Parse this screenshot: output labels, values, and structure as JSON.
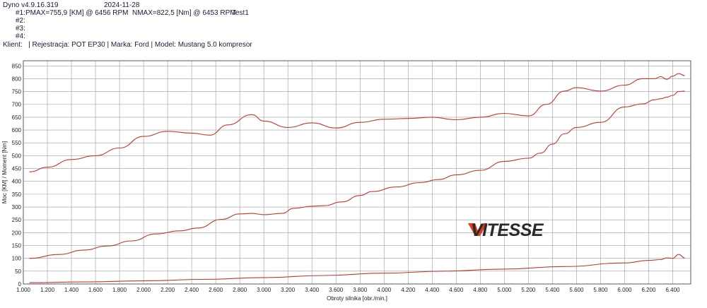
{
  "header": {
    "app_version": "Dyno v4.9.16.319",
    "date": "2024-11-28",
    "run1_label": "#1:",
    "run1_power": "PMAX=755,9 [KM] @ 6456 RPM",
    "run1_torque": "NMAX=822,5 [Nm] @ 6453 RPM",
    "run1_name": "Test1",
    "run2_label": "#2:",
    "run3_label": "#3:",
    "run4_label": "#4:",
    "client_line": "Klient:   | Rejestracja: POT EP30 | Marka: Ford | Model: Mustang 5.0 kompresor"
  },
  "logo": {
    "text": "VITESSE",
    "accent": "#e03a1e",
    "color": "#2a2a2a"
  },
  "chart_data": {
    "type": "line",
    "xlabel": "Obroty silnika [obr./min.]",
    "ylabel": "Moc [KM] / Moment [Nm]",
    "xlim": [
      1000,
      6550
    ],
    "ylim": [
      0,
      870
    ],
    "x_ticks": [
      "1.000",
      "1.200",
      "1.400",
      "1.600",
      "1.800",
      "2.000",
      "2.200",
      "2.400",
      "2.600",
      "2.800",
      "3.000",
      "3.200",
      "3.400",
      "3.600",
      "3.800",
      "4.000",
      "4.200",
      "4.400",
      "4.600",
      "4.800",
      "5.000",
      "5.200",
      "5.400",
      "5.600",
      "5.800",
      "6.000",
      "6.200",
      "6.400"
    ],
    "y_ticks": [
      0,
      50,
      100,
      150,
      200,
      250,
      300,
      350,
      400,
      450,
      500,
      550,
      600,
      650,
      700,
      750,
      800,
      850
    ],
    "grid": true,
    "colors": {
      "series": "#c0392b",
      "grid": "#9a9aa8",
      "frame": "#5a5a6a"
    },
    "series": [
      {
        "values_x": [
          1050,
          1300,
          1500,
          1700,
          1900,
          2100,
          2300,
          2450,
          2650,
          2800,
          2900,
          3000,
          3150,
          3250,
          3400,
          3500,
          3650,
          3800,
          3900,
          4100,
          4300,
          4450,
          4600,
          4800,
          5000,
          5200,
          5300,
          5400,
          5500,
          5600,
          5800,
          6000,
          6150,
          6250,
          6300,
          6350,
          6400,
          6450,
          6500
        ],
        "values": [
          100,
          115,
          132,
          148,
          168,
          195,
          207,
          218,
          252,
          273,
          275,
          270,
          275,
          295,
          303,
          305,
          320,
          345,
          360,
          378,
          395,
          407,
          425,
          443,
          478,
          490,
          510,
          545,
          585,
          610,
          630,
          690,
          702,
          718,
          722,
          728,
          735,
          750,
          752
        ]
      },
      {
        "values_x": [
          1050,
          1200,
          1400,
          1600,
          1800,
          2000,
          2200,
          2400,
          2550,
          2700,
          2900,
          3000,
          3200,
          3400,
          3600,
          3800,
          4000,
          4200,
          4400,
          4600,
          4800,
          5000,
          5200,
          5350,
          5500,
          5600,
          5800,
          6000,
          6150,
          6250,
          6300,
          6350,
          6400,
          6450,
          6500
        ],
        "values": [
          437,
          455,
          485,
          500,
          530,
          575,
          595,
          588,
          580,
          620,
          660,
          635,
          610,
          628,
          608,
          630,
          642,
          645,
          650,
          640,
          650,
          665,
          655,
          700,
          752,
          765,
          752,
          775,
          800,
          800,
          808,
          798,
          810,
          820,
          812
        ]
      },
      {
        "values_x": [
          1050,
          1500,
          2000,
          2500,
          3000,
          3500,
          4000,
          4500,
          5000,
          5500,
          6000,
          6200,
          6300,
          6350,
          6400,
          6450,
          6500
        ],
        "values": [
          5,
          8,
          12,
          18,
          25,
          33,
          42,
          50,
          58,
          68,
          82,
          92,
          95,
          102,
          100,
          115,
          102
        ]
      }
    ]
  }
}
